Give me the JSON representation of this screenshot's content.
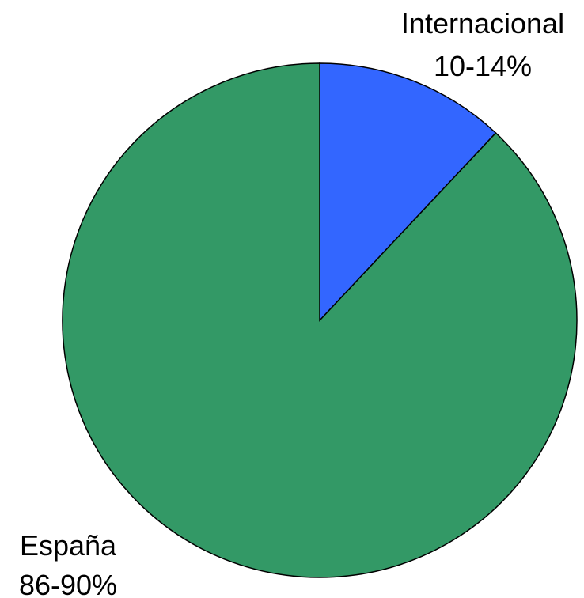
{
  "chart_data": {
    "type": "pie",
    "title": "",
    "slices": [
      {
        "name": "Internacional",
        "value": 12,
        "label": "10-14%",
        "color": "#3366ff"
      },
      {
        "name": "España",
        "value": 88,
        "label": "86-90%",
        "color": "#339966"
      }
    ],
    "outline_color": "#000000",
    "start_angle": "12 o'clock",
    "direction": "clockwise"
  }
}
